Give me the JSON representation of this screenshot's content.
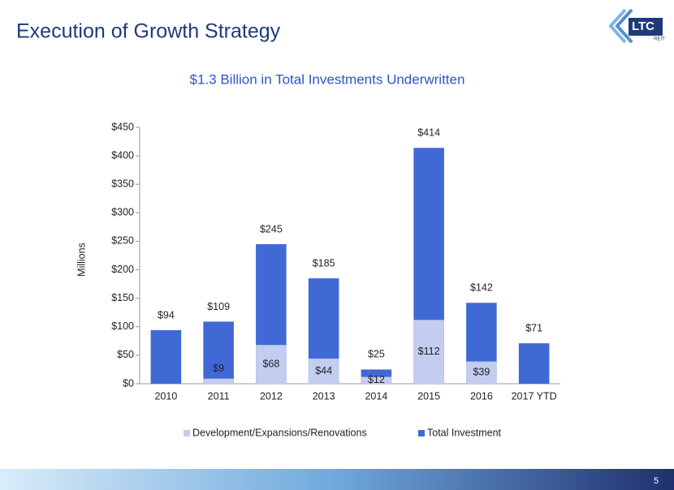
{
  "header": {
    "title": "Execution of Growth Strategy"
  },
  "logo": {
    "text": "LTC",
    "subtext": "REIT"
  },
  "page_number": "5",
  "chart_data": {
    "type": "bar",
    "title": "$1.3 Billion in Total Investments Underwritten",
    "y_label": "Millions",
    "categories": [
      "2010",
      "2011",
      "2012",
      "2013",
      "2014",
      "2015",
      "2016",
      "2017 YTD"
    ],
    "series": [
      {
        "name": "Total Investment",
        "color": "#4169d6",
        "values": [
          94,
          109,
          245,
          185,
          25,
          414,
          142,
          71
        ],
        "value_labels": [
          "$94",
          "$109",
          "$245",
          "$185",
          "$25",
          "$414",
          "$142",
          "$71"
        ]
      },
      {
        "name": "Development/Expansions/Renovations",
        "color": "#c3cdf0",
        "values": [
          null,
          9,
          68,
          44,
          12,
          112,
          39,
          null
        ],
        "value_labels": [
          null,
          "$9",
          "$68",
          "$44",
          "$12",
          "$112",
          "$39",
          null
        ]
      }
    ],
    "ylim": [
      0,
      450
    ],
    "yticks": [
      {
        "value": 0,
        "label": "$0"
      },
      {
        "value": 50,
        "label": "$50"
      },
      {
        "value": 100,
        "label": "$100"
      },
      {
        "value": 150,
        "label": "$150"
      },
      {
        "value": 200,
        "label": "$200"
      },
      {
        "value": 250,
        "label": "$250"
      },
      {
        "value": 300,
        "label": "$300"
      },
      {
        "value": 350,
        "label": "$350"
      },
      {
        "value": 400,
        "label": "$400"
      },
      {
        "value": 450,
        "label": "$450"
      }
    ],
    "grid": false,
    "legend_position": "bottom"
  }
}
